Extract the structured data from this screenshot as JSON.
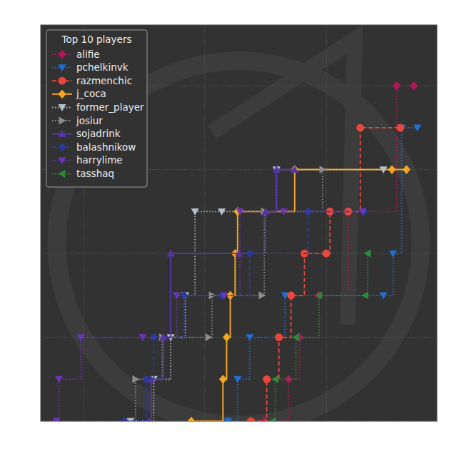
{
  "chart_data": {
    "type": "step",
    "legend_title": "Top 10 players",
    "xlim": [
      -3.5,
      29.1
    ],
    "ylim": [
      0,
      9.45
    ],
    "xticks": [
      0,
      10,
      20
    ],
    "yticks": [
      0,
      2,
      4,
      6,
      8
    ],
    "grid": true,
    "legend": "upper left",
    "tick_labels": false,
    "series": [
      {
        "name": "alifie",
        "color": "#b0185a",
        "marker": "diamond",
        "line_style": "dotted",
        "x": [
          14.9,
          16.9,
          17.8,
          19.4,
          21.8,
          25.8,
          27.2
        ],
        "values": [
          0,
          1,
          2,
          3,
          5,
          8,
          8
        ]
      },
      {
        "name": "pchelkinvk",
        "color": "#1f6ed4",
        "marker": "triangle-down",
        "line_style": "dotted",
        "x": [
          11.9,
          12.7,
          13.7,
          16.6,
          24.7,
          25.5,
          26.2,
          27.5
        ],
        "values": [
          0,
          1,
          2,
          3,
          3,
          4,
          7,
          7
        ]
      },
      {
        "name": "razmenchic",
        "color": "#e8473b",
        "marker": "circle",
        "line_style": "dashed",
        "x": [
          13.8,
          15.1,
          16.1,
          17.1,
          18.2,
          20.0,
          20.3,
          21.8,
          22.8,
          26.1
        ],
        "values": [
          0,
          1,
          2,
          3,
          4,
          4,
          5,
          5,
          7,
          7
        ]
      },
      {
        "name": "j_coca",
        "color": "#f5a623",
        "marker": "diamond",
        "line_style": "solid",
        "x": [
          8.9,
          11.5,
          11.8,
          12.1,
          12.5,
          12.7,
          17.4,
          25.4,
          26.6
        ],
        "values": [
          0,
          1,
          2,
          3,
          4,
          5,
          6,
          6,
          6
        ]
      },
      {
        "name": "former_player",
        "color": "#b4c0c8",
        "marker": "triangle-down",
        "line_style": "dotted",
        "x": [
          3.9,
          5.8,
          7.2,
          8.4,
          9.2,
          11.4,
          15.9,
          24.7
        ],
        "values": [
          0,
          1,
          2,
          3,
          5,
          5,
          6,
          6
        ]
      },
      {
        "name": "josiur",
        "color": "#8c8c8c",
        "marker": "triangle-right",
        "line_style": "dotted",
        "x": [
          3.6,
          4.3,
          6.5,
          10.3,
          10.6,
          14.7,
          14.9,
          19.7
        ],
        "values": [
          0,
          1,
          2,
          2,
          3,
          3,
          5,
          6
        ]
      },
      {
        "name": "sojadrink",
        "color": "#5535a8",
        "marker": "triangle-up",
        "line_style": "solid",
        "x": [
          5.4,
          5.6,
          6.6,
          7.2,
          12.8,
          15.0,
          15.9,
          17.4
        ],
        "values": [
          0,
          1,
          2,
          4,
          4,
          5,
          6,
          6
        ]
      },
      {
        "name": "balashnikow",
        "color": "#2b3a9a",
        "marker": "diamond",
        "line_style": "dashed",
        "x": [
          3.4,
          5.2,
          5.8,
          8.3,
          11.4,
          13.7,
          18.5,
          23.1
        ],
        "values": [
          0,
          1,
          2,
          3,
          3,
          4,
          5,
          5
        ]
      },
      {
        "name": "harrylime",
        "color": "#6a35b8",
        "marker": "triangle-down",
        "line_style": "dotted",
        "x": [
          -2.2,
          -2.0,
          -0.2,
          4.9,
          7.7,
          11.6,
          12.9,
          16.5,
          23.0
        ],
        "values": [
          0,
          1,
          2,
          2,
          3,
          3,
          5,
          5,
          5
        ]
      },
      {
        "name": "tasshaq",
        "color": "#2a8a3a",
        "marker": "triangle-left",
        "line_style": "dotted",
        "x": [
          15.6,
          15.8,
          17.5,
          19.4,
          23.2,
          23.4
        ],
        "values": [
          0,
          1,
          2,
          3,
          3,
          4
        ]
      }
    ]
  }
}
